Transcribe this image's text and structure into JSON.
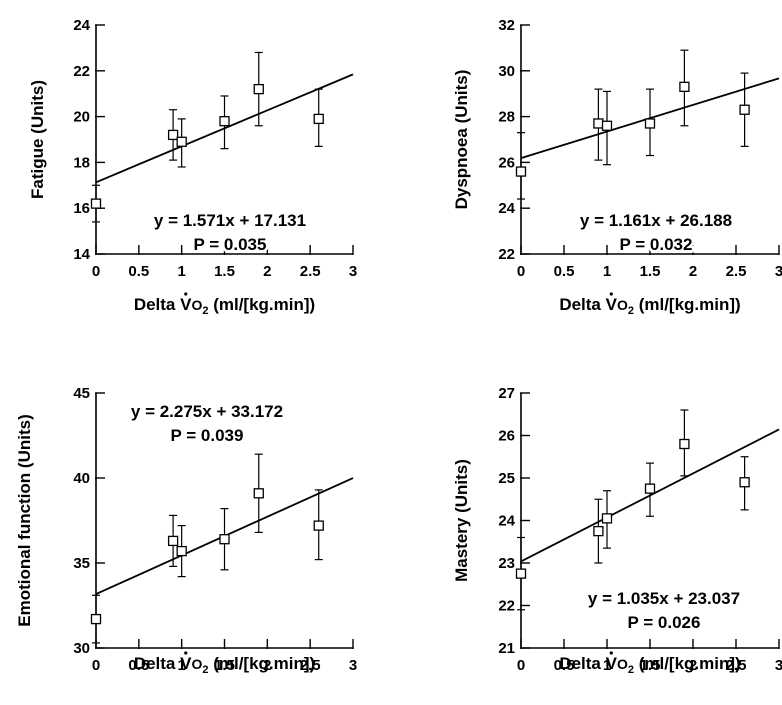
{
  "chart_data": [
    {
      "type": "scatter",
      "ylabel": "Fatigue (Units)",
      "xlabel": "Delta VO2 (ml/[kg.min])",
      "xlabel_parts": {
        "pre": "Delta V",
        "o": "O",
        "sub": "2",
        "post": " (ml/[kg.min])"
      },
      "xlim": [
        0,
        3
      ],
      "ylim": [
        14,
        24
      ],
      "xticks": [
        0,
        0.5,
        1,
        1.5,
        2,
        2.5,
        3
      ],
      "xtick_labels": [
        "0",
        "0.5",
        "1",
        "1.5",
        "2",
        "2.5",
        "3"
      ],
      "yticks": [
        14,
        16,
        18,
        20,
        22,
        24
      ],
      "ytick_labels": [
        "14",
        "16",
        "18",
        "20",
        "22",
        "24"
      ],
      "points": [
        {
          "x": 0,
          "y": 16.2,
          "low": 15.4,
          "high": 17.0
        },
        {
          "x": 0.9,
          "y": 19.2,
          "low": 18.1,
          "high": 20.3
        },
        {
          "x": 1.0,
          "y": 18.9,
          "low": 17.8,
          "high": 19.9
        },
        {
          "x": 1.5,
          "y": 19.8,
          "low": 18.6,
          "high": 20.9
        },
        {
          "x": 1.9,
          "y": 21.2,
          "low": 19.6,
          "high": 22.8
        },
        {
          "x": 2.6,
          "y": 19.9,
          "low": 18.7,
          "high": 21.2
        }
      ],
      "fit": {
        "slope": 1.571,
        "intercept": 17.131
      },
      "equation": "y = 1.571x + 17.131",
      "pvalue": "P = 0.035",
      "annotation_position": "bottom-right"
    },
    {
      "type": "scatter",
      "ylabel": "Dyspnoea (Units)",
      "xlabel": "Delta VO2 (ml/[kg.min])",
      "xlabel_parts": {
        "pre": "Delta V",
        "o": "O",
        "sub": "2",
        "post": " (ml/[kg.min])"
      },
      "xlim": [
        0,
        3
      ],
      "ylim": [
        22,
        32
      ],
      "xticks": [
        0,
        0.5,
        1,
        1.5,
        2,
        2.5,
        3
      ],
      "xtick_labels": [
        "0",
        "0.5",
        "1",
        "1.5",
        "2",
        "2.5",
        "3"
      ],
      "yticks": [
        22,
        24,
        26,
        28,
        30,
        32
      ],
      "ytick_labels": [
        "22",
        "24",
        "26",
        "28",
        "30",
        "32"
      ],
      "points": [
        {
          "x": 0,
          "y": 25.6,
          "low": 24.4,
          "high": 27.3
        },
        {
          "x": 0.9,
          "y": 27.7,
          "low": 26.1,
          "high": 29.2
        },
        {
          "x": 1.0,
          "y": 27.6,
          "low": 25.9,
          "high": 29.1
        },
        {
          "x": 1.5,
          "y": 27.7,
          "low": 26.3,
          "high": 29.2
        },
        {
          "x": 1.9,
          "y": 29.3,
          "low": 27.6,
          "high": 30.9
        },
        {
          "x": 2.6,
          "y": 28.3,
          "low": 26.7,
          "high": 29.9
        }
      ],
      "fit": {
        "slope": 1.161,
        "intercept": 26.188
      },
      "equation": "y = 1.161x + 26.188",
      "pvalue": "P = 0.032",
      "annotation_position": "bottom-right"
    },
    {
      "type": "scatter",
      "ylabel": "Emotional function (Units)",
      "xlabel": "Delta VO2 (ml/[kg.min])",
      "xlabel_parts": {
        "pre": "Delta V",
        "o": "O",
        "sub": "2",
        "post": " (ml/[kg.min])"
      },
      "xlim": [
        0,
        3
      ],
      "ylim": [
        30,
        45
      ],
      "xticks": [
        0,
        0.5,
        1,
        1.5,
        2,
        2.5,
        3
      ],
      "xtick_labels": [
        "0",
        "0.5",
        "1",
        "1.5",
        "2",
        "2.5",
        "3"
      ],
      "yticks": [
        30,
        35,
        40,
        45
      ],
      "ytick_labels": [
        "30",
        "35",
        "40",
        "45"
      ],
      "points": [
        {
          "x": 0,
          "y": 31.7,
          "low": 30.3,
          "high": 33.1
        },
        {
          "x": 0.9,
          "y": 36.3,
          "low": 34.8,
          "high": 37.8
        },
        {
          "x": 1.0,
          "y": 35.7,
          "low": 34.2,
          "high": 37.2
        },
        {
          "x": 1.5,
          "y": 36.4,
          "low": 34.6,
          "high": 38.2
        },
        {
          "x": 1.9,
          "y": 39.1,
          "low": 36.8,
          "high": 41.4
        },
        {
          "x": 2.6,
          "y": 37.2,
          "low": 35.2,
          "high": 39.3
        }
      ],
      "fit": {
        "slope": 2.275,
        "intercept": 33.172
      },
      "equation": "y = 2.275x + 33.172",
      "pvalue": "P = 0.039",
      "annotation_position": "top-left"
    },
    {
      "type": "scatter",
      "ylabel": "Mastery (Units)",
      "xlabel": "Delta VO2 (ml/[kg.min])",
      "xlabel_parts": {
        "pre": "Delta V",
        "o": "O",
        "sub": "2",
        "post": " (ml/[kg.min])"
      },
      "xlim": [
        0,
        3
      ],
      "ylim": [
        21,
        27
      ],
      "xticks": [
        0,
        0.5,
        1,
        1.5,
        2,
        2.5,
        3
      ],
      "xtick_labels": [
        "0",
        "0.5",
        "1",
        "1.5",
        "2",
        "2.5",
        "3"
      ],
      "yticks": [
        21,
        22,
        23,
        24,
        25,
        26,
        27
      ],
      "ytick_labels": [
        "21",
        "22",
        "23",
        "24",
        "25",
        "26",
        "27"
      ],
      "points": [
        {
          "x": 0,
          "y": 22.75,
          "low": 21.9,
          "high": 23.6
        },
        {
          "x": 0.9,
          "y": 23.75,
          "low": 23.0,
          "high": 24.5
        },
        {
          "x": 1.0,
          "y": 24.05,
          "low": 23.35,
          "high": 24.7
        },
        {
          "x": 1.5,
          "y": 24.75,
          "low": 24.1,
          "high": 25.35
        },
        {
          "x": 1.9,
          "y": 25.8,
          "low": 25.05,
          "high": 26.6
        },
        {
          "x": 2.6,
          "y": 24.9,
          "low": 24.25,
          "high": 25.5
        }
      ],
      "fit": {
        "slope": 1.035,
        "intercept": 23.037
      },
      "equation": "y = 1.035x + 23.037",
      "pvalue": "P = 0.026",
      "annotation_position": "bottom-right"
    }
  ]
}
